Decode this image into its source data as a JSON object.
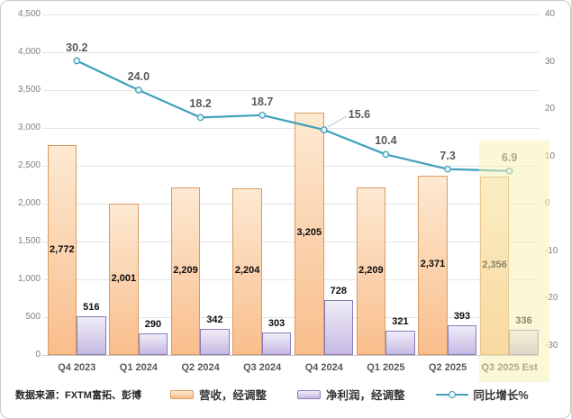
{
  "frame": {
    "background": "#FFFFFF",
    "border_color": "#C9C9C9"
  },
  "footer": {
    "source_label": "数据来源：FXTM富拓、彭博"
  },
  "legend": {
    "items": [
      "营收，经调整",
      "净利润，经调整",
      "同比增长%"
    ]
  },
  "colors": {
    "revenue_fill_top": "#FDE9D2",
    "revenue_fill_bottom": "#F9BE8C",
    "revenue_border": "#D89C63",
    "profit_fill_top": "#F0EDF8",
    "profit_fill_bottom": "#C5B9E2",
    "profit_border": "#8B7AB8",
    "line": "#3FA0BD",
    "marker_fill": "#EAF5F9",
    "leader_line": "#BFBFBF",
    "grid": "#E4E4E4",
    "axis_text": "#7F7F7F",
    "data_label_text": "#595959",
    "highlight_band": "rgba(248,242,180,0.52)"
  },
  "chart_data": {
    "type": "bar",
    "subtype": "combo dual-axis: two bar series (left axis) + one line series (right axis)",
    "title": "",
    "categories": [
      "Q4 2023",
      "Q1 2024",
      "Q2 2024",
      "Q3 2024",
      "Q4 2024",
      "Q1 2025",
      "Q2 2025",
      "Q3 2025 Est"
    ],
    "series": [
      {
        "name": "营收，经调整",
        "type": "bar",
        "axis": "left",
        "values": [
          2772,
          2001,
          2209,
          2204,
          3205,
          2209,
          2371,
          2356
        ],
        "labels": [
          "2,772",
          "2,001",
          "2,209",
          "2,204",
          "3,205",
          "2,209",
          "2,371",
          "2,356"
        ]
      },
      {
        "name": "净利润，经调整",
        "type": "bar",
        "axis": "left",
        "values": [
          516,
          290,
          342,
          303,
          728,
          321,
          393,
          336
        ],
        "labels": [
          "516",
          "290",
          "342",
          "303",
          "728",
          "321",
          "393",
          "336"
        ]
      },
      {
        "name": "同比增长%",
        "type": "line",
        "axis": "right",
        "values": [
          30.2,
          24.0,
          18.2,
          18.7,
          15.6,
          10.4,
          7.3,
          6.9
        ],
        "labels": [
          "30.2",
          "24.0",
          "18.2",
          "18.7",
          "15.6",
          "10.4",
          "7.3",
          "6.9"
        ]
      }
    ],
    "left_axis": {
      "min": 0,
      "max": 4500,
      "step": 500,
      "tick_labels": [
        "0",
        "500",
        "1,000",
        "1,500",
        "2,000",
        "2,500",
        "3,000",
        "3,500",
        "4,000",
        "4,500"
      ]
    },
    "right_axis": {
      "max": 40,
      "min": -32,
      "step": 10,
      "tick_labels": [
        "40",
        "30",
        "20",
        "10",
        "0",
        "-10",
        "-20",
        "-30"
      ]
    },
    "grid": true,
    "legend_position": "bottom",
    "highlight": {
      "category": "Q3 2025 Est",
      "note": "estimated quarter shaded pale yellow"
    }
  }
}
